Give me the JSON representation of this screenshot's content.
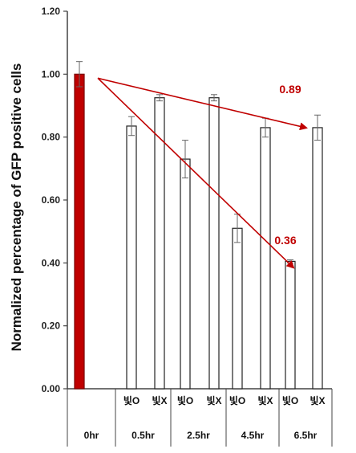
{
  "chart_data": {
    "type": "bar",
    "ylabel": "Normalized percentage of GFP positive cells",
    "ylim": [
      0,
      1.2
    ],
    "yticks": [
      "0.00",
      "0.20",
      "0.40",
      "0.60",
      "0.80",
      "1.00",
      "1.20"
    ],
    "groups": [
      "0hr",
      "0.5hr",
      "2.5hr",
      "4.5hr",
      "6.5hr"
    ],
    "sublabels": [
      "빛O",
      "빛X"
    ],
    "bars": [
      {
        "group": "0hr",
        "sub": "",
        "value": 1.0,
        "error": 0.04,
        "color": "#c00000"
      },
      {
        "group": "0.5hr",
        "sub": "빛O",
        "value": 0.835,
        "error": 0.03,
        "color": "#ffffff"
      },
      {
        "group": "0.5hr",
        "sub": "빛X",
        "value": 0.925,
        "error": 0.01,
        "color": "#ffffff"
      },
      {
        "group": "2.5hr",
        "sub": "빛O",
        "value": 0.73,
        "error": 0.06,
        "color": "#ffffff"
      },
      {
        "group": "2.5hr",
        "sub": "빛X",
        "value": 0.925,
        "error": 0.01,
        "color": "#ffffff"
      },
      {
        "group": "4.5hr",
        "sub": "빛O",
        "value": 0.51,
        "error": 0.045,
        "color": "#ffffff"
      },
      {
        "group": "4.5hr",
        "sub": "빛X",
        "value": 0.83,
        "error": 0.03,
        "color": "#ffffff"
      },
      {
        "group": "6.5hr",
        "sub": "빛O",
        "value": 0.405,
        "error": 0.005,
        "color": "#ffffff"
      },
      {
        "group": "6.5hr",
        "sub": "빛X",
        "value": 0.83,
        "error": 0.04,
        "color": "#ffffff"
      }
    ],
    "annotations": [
      {
        "text": "0.89",
        "from_value": 1.0,
        "to_value": 0.86,
        "from_bar": 0,
        "to_bar": 8,
        "color": "#c00000"
      },
      {
        "text": "0.36",
        "from_value": 1.0,
        "to_value": 0.385,
        "from_bar": 0,
        "to_bar": 7,
        "color": "#c00000"
      }
    ],
    "grid": false,
    "legend": "none"
  }
}
